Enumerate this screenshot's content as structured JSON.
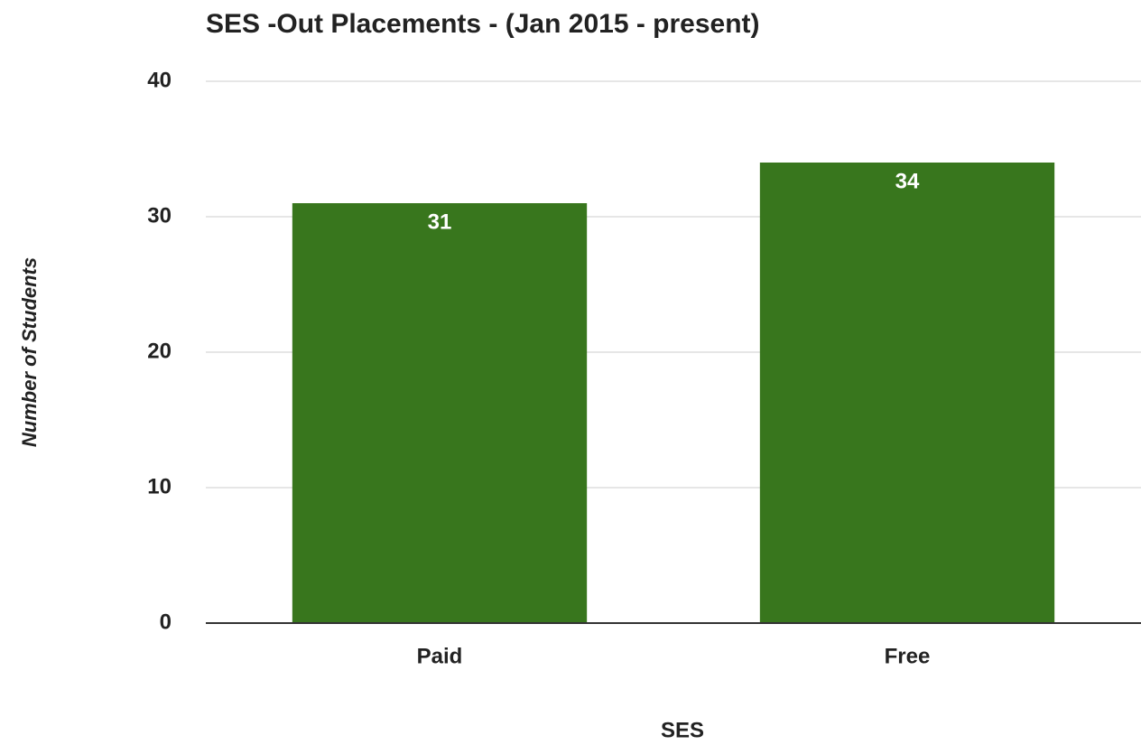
{
  "chart_data": {
    "type": "bar",
    "title": "SES -Out Placements - (Jan 2015 - present)",
    "x_label": "SES",
    "y_label": "Number of Students",
    "categories": [
      "Paid",
      "Free"
    ],
    "values": [
      31,
      34
    ],
    "color": "#38761d",
    "ylim": [
      0,
      40
    ],
    "yticks": [
      0,
      10,
      20,
      30,
      40
    ],
    "grid": true
  }
}
